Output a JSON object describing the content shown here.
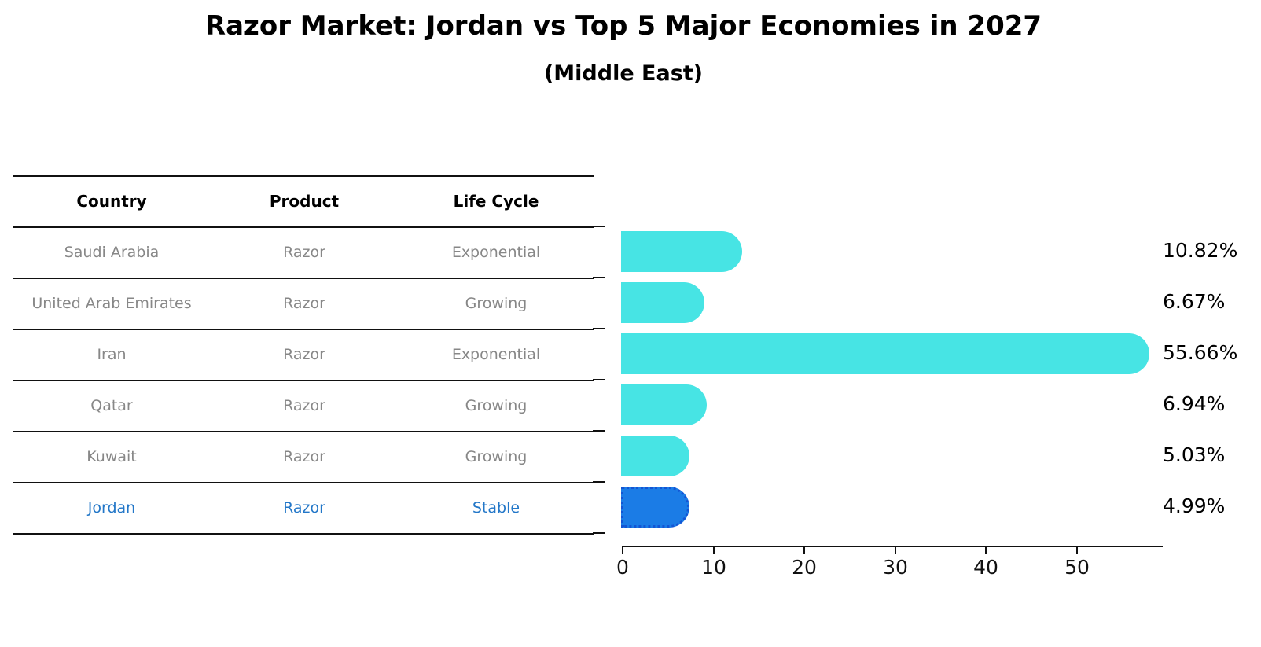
{
  "page": {
    "title": "Razor Market: Jordan vs Top 5 Major Economies in 2027",
    "subtitle": "(Middle East)"
  },
  "table": {
    "headers": [
      "Country",
      "Product",
      "Life Cycle"
    ],
    "rows": [
      {
        "country": "Saudi Arabia",
        "product": "Razor",
        "life_cycle": "Exponential",
        "highlight": false
      },
      {
        "country": "United Arab Emirates",
        "product": "Razor",
        "life_cycle": "Growing",
        "highlight": false
      },
      {
        "country": "Iran",
        "product": "Razor",
        "life_cycle": "Exponential",
        "highlight": false
      },
      {
        "country": "Qatar",
        "product": "Razor",
        "life_cycle": "Growing",
        "highlight": false
      },
      {
        "country": "Kuwait",
        "product": "Razor",
        "life_cycle": "Growing",
        "highlight": false
      },
      {
        "country": "Jordan",
        "product": "Razor",
        "life_cycle": "Stable",
        "highlight": true
      }
    ]
  },
  "chart_data": {
    "type": "bar",
    "orientation": "horizontal",
    "title": "Razor Market: Jordan vs Top 5 Major Economies in 2027",
    "subtitle": "(Middle East)",
    "categories": [
      "Saudi Arabia",
      "United Arab Emirates",
      "Iran",
      "Qatar",
      "Kuwait",
      "Jordan"
    ],
    "values": [
      10.82,
      6.67,
      55.66,
      6.94,
      5.03,
      4.99
    ],
    "value_labels": [
      "10.82%",
      "6.67%",
      "55.66%",
      "6.94%",
      "5.03%",
      "4.99%"
    ],
    "unit": "%",
    "highlight_index": 5,
    "x_ticks": [
      "0",
      "10",
      "20",
      "30",
      "40",
      "50"
    ],
    "x_tick_values": [
      0,
      10,
      20,
      30,
      40,
      50
    ],
    "xlim": [
      0,
      59.5
    ],
    "grid": false,
    "legend": false,
    "bar_color": "#47E4E4",
    "highlight_bar_color": "#1B7CE6",
    "highlight_border_color": "#1355D4",
    "highlight_text_color": "#2377C8"
  }
}
